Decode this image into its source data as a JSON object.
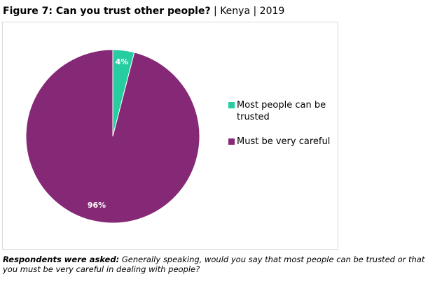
{
  "title": {
    "bold": "Figure 7: Can you trust other people?",
    "separator": " | ",
    "country": "Kenya",
    "separator2": " | ",
    "year": "2019"
  },
  "chart_data": {
    "type": "pie",
    "categories": [
      "Most people can be trusted",
      "Must be very careful"
    ],
    "values": [
      4,
      96
    ],
    "labels": [
      "4%",
      "96%"
    ],
    "colors": [
      "#26CDA0",
      "#852876"
    ],
    "legend": "right",
    "start_angle": "12 o'clock, clockwise"
  },
  "legend": {
    "items": [
      {
        "label": "Most people can be trusted",
        "color": "#26CDA0"
      },
      {
        "label": "Must be very careful",
        "color": "#852876"
      }
    ]
  },
  "note": {
    "lead": "Respondents were asked:",
    "text": " Generally speaking, would you say that most people can be trusted or that you must be very careful in dealing with people?"
  }
}
